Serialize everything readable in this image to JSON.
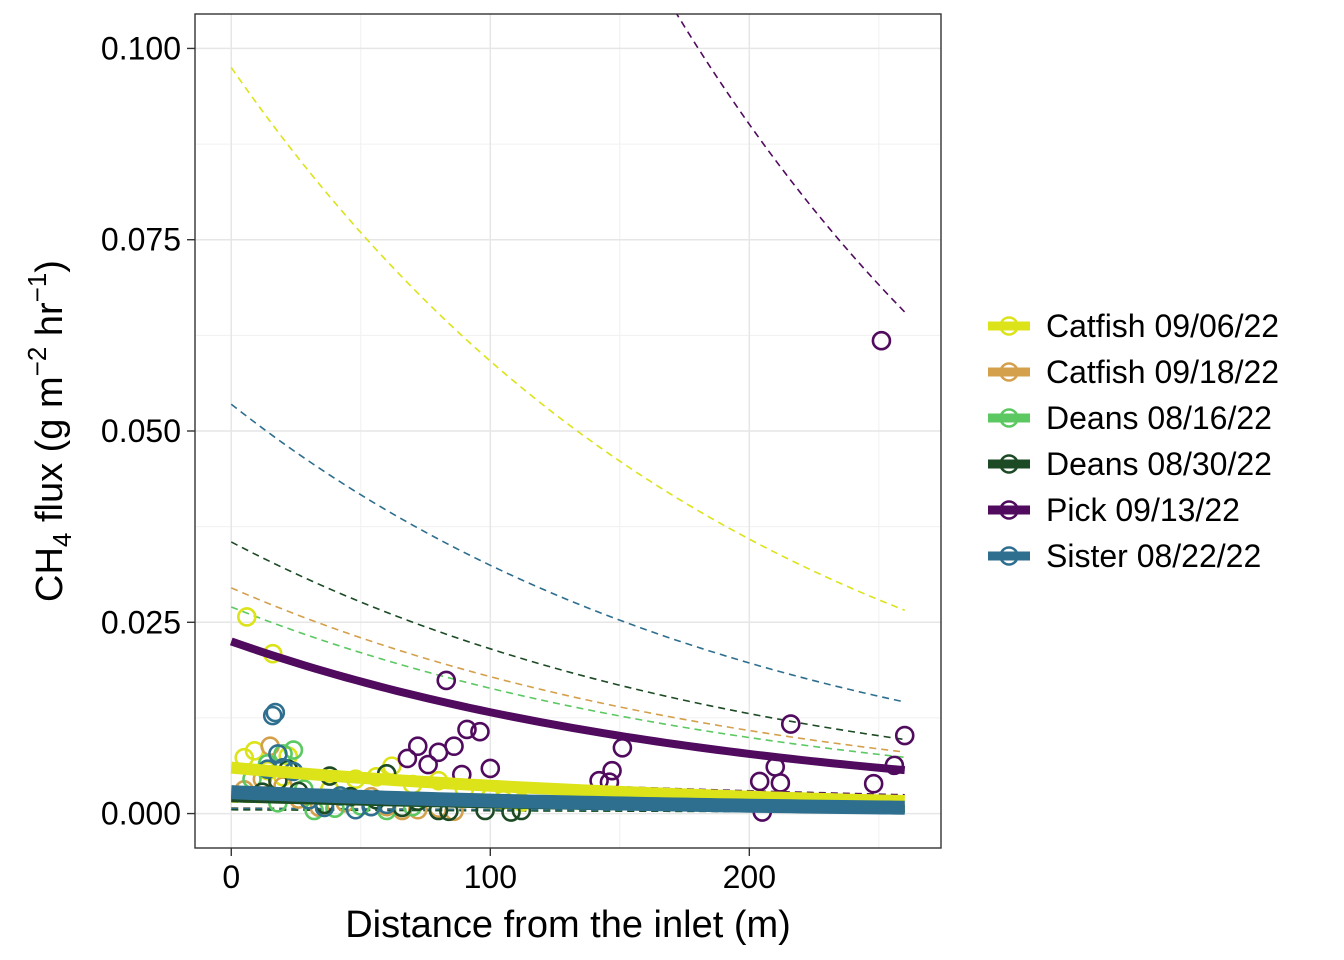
{
  "chart_data": {
    "type": "scatter",
    "xlabel": "Distance from the inlet (m)",
    "ylabel": {
      "prefix": "CH",
      "sub": "4",
      "mid": " flux (g m",
      "sup1": "−2",
      "mid2": " hr",
      "sup2": "−1",
      "suffix": ")"
    },
    "xlim": [
      -14,
      274
    ],
    "ylim": [
      -0.0045,
      0.1045
    ],
    "x_ticks": [
      0,
      100,
      200
    ],
    "x_tick_labels": [
      "0",
      "100",
      "200"
    ],
    "y_ticks": [
      0.0,
      0.025,
      0.05,
      0.075,
      0.1
    ],
    "y_tick_labels": [
      "0.000",
      "0.025",
      "0.050",
      "0.075",
      "0.100"
    ],
    "grid": true,
    "legend_position": "right",
    "series": [
      {
        "name": "Catfish 09/06/22",
        "color": "#DCE319",
        "points": [
          [
            6,
            0.0257
          ],
          [
            16,
            0.0209
          ],
          [
            5,
            0.0073
          ],
          [
            9,
            0.0082
          ],
          [
            14,
            0.0056
          ],
          [
            20,
            0.0048
          ],
          [
            22,
            0.0075
          ],
          [
            38,
            0.0031
          ],
          [
            48,
            0.0045
          ],
          [
            56,
            0.0048
          ],
          [
            62,
            0.0062
          ],
          [
            70,
            0.0038
          ],
          [
            80,
            0.0043
          ],
          [
            90,
            0.0032
          ],
          [
            100,
            0.0021
          ],
          [
            105,
            0.0018
          ],
          [
            112,
            0.0015
          ]
        ],
        "fit": {
          "a": 0.006,
          "b": 0.005,
          "x_range": [
            0,
            260
          ]
        },
        "ci_upper": {
          "a": 0.0975,
          "b": 0.005
        }
      },
      {
        "name": "Catfish 09/18/22",
        "color": "#D4A04C",
        "points": [
          [
            5,
            0.0031
          ],
          [
            12,
            0.0045
          ],
          [
            15,
            0.0088
          ],
          [
            20,
            0.0036
          ],
          [
            26,
            0.0019
          ],
          [
            34,
            0.0008
          ],
          [
            44,
            0.0014
          ],
          [
            54,
            0.0022
          ],
          [
            60,
            0.0009
          ],
          [
            66,
            0.0004
          ],
          [
            72,
            0.0005
          ],
          [
            80,
            0.0007
          ],
          [
            86,
            0.0003
          ]
        ],
        "fit": {
          "a": 0.003,
          "b": 0.005,
          "x_range": [
            0,
            260
          ]
        },
        "ci_upper": {
          "a": 0.0295,
          "b": 0.005
        }
      },
      {
        "name": "Deans 08/16/22",
        "color": "#5BC861",
        "points": [
          [
            8,
            0.0045
          ],
          [
            14,
            0.0065
          ],
          [
            18,
            0.0014
          ],
          [
            20,
            0.0078
          ],
          [
            24,
            0.0083
          ],
          [
            28,
            0.0032
          ],
          [
            32,
            0.0004
          ],
          [
            40,
            0.0007
          ],
          [
            50,
            0.001
          ],
          [
            60,
            0.0004
          ],
          [
            70,
            0.0009
          ]
        ],
        "fit": {
          "a": 0.002,
          "b": 0.005,
          "x_range": [
            0,
            260
          ]
        },
        "ci_upper": {
          "a": 0.027,
          "b": 0.005
        }
      },
      {
        "name": "Deans 08/30/22",
        "color": "#1C4A24",
        "points": [
          [
            12,
            0.0028
          ],
          [
            18,
            0.0043
          ],
          [
            22,
            0.0058
          ],
          [
            26,
            0.0029
          ],
          [
            36,
            0.0012
          ],
          [
            38,
            0.0049
          ],
          [
            46,
            0.0022
          ],
          [
            56,
            0.0018
          ],
          [
            60,
            0.0052
          ],
          [
            66,
            0.0008
          ],
          [
            72,
            0.0016
          ],
          [
            80,
            0.0004
          ],
          [
            84,
            0.0003
          ],
          [
            98,
            0.0004
          ],
          [
            108,
            0.0002
          ],
          [
            112,
            0.0004
          ]
        ],
        "fit": {
          "a": 0.002,
          "b": 0.005,
          "x_range": [
            0,
            260
          ]
        },
        "ci_upper": {
          "a": 0.0355,
          "b": 0.005
        }
      },
      {
        "name": "Pick 09/13/22",
        "color": "#500A5E",
        "points": [
          [
            68,
            0.0072
          ],
          [
            72,
            0.0088
          ],
          [
            76,
            0.0064
          ],
          [
            80,
            0.008
          ],
          [
            83,
            0.0174
          ],
          [
            86,
            0.0088
          ],
          [
            89,
            0.0051
          ],
          [
            91,
            0.011
          ],
          [
            96,
            0.0107
          ],
          [
            100,
            0.0059
          ],
          [
            142,
            0.0043
          ],
          [
            146,
            0.0041
          ],
          [
            147,
            0.0056
          ],
          [
            151,
            0.0086
          ],
          [
            204,
            0.0042
          ],
          [
            205,
            0.0002
          ],
          [
            210,
            0.0061
          ],
          [
            212,
            0.004
          ],
          [
            216,
            0.0117
          ],
          [
            248,
            0.0039
          ],
          [
            251,
            0.0618
          ],
          [
            256,
            0.0063
          ],
          [
            260,
            0.0102
          ]
        ],
        "fit": {
          "a": 0.0225,
          "b": 0.0053,
          "x_range": [
            0,
            260
          ]
        },
        "ci_upper": {
          "a": 0.26,
          "b": 0.0053
        }
      },
      {
        "name": "Sister 08/22/22",
        "color": "#2E6E8E",
        "points": [
          [
            14,
            0.0058
          ],
          [
            16,
            0.0128
          ],
          [
            17,
            0.0132
          ],
          [
            18,
            0.0078
          ],
          [
            20,
            0.006
          ],
          [
            24,
            0.0055
          ],
          [
            30,
            0.0018
          ],
          [
            36,
            0.0008
          ],
          [
            42,
            0.0023
          ],
          [
            48,
            0.0005
          ],
          [
            54,
            0.0009
          ],
          [
            60,
            0.0012
          ]
        ],
        "fit": {
          "a": 0.0028,
          "b": 0.005,
          "x_range": [
            0,
            260
          ]
        },
        "ci_upper": {
          "a": 0.0535,
          "b": 0.005
        }
      }
    ]
  }
}
